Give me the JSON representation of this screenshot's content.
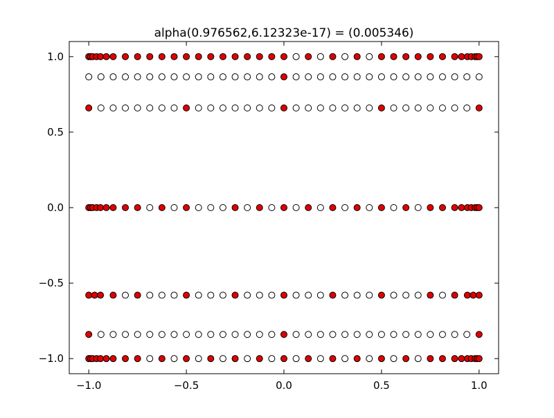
{
  "chart_data": {
    "type": "scatter",
    "title": "alpha(0.976562,6.12323e-17) =  (0.005346)",
    "xlabel": "",
    "ylabel": "",
    "xlim": [
      -1.1,
      1.1
    ],
    "ylim": [
      -1.1,
      1.1
    ],
    "xticks": [
      -1.0,
      -0.5,
      0.0,
      0.5,
      1.0
    ],
    "yticks": [
      -1.0,
      -0.5,
      0.0,
      0.5,
      1.0
    ],
    "xtick_labels": [
      "−1.0",
      "−0.5",
      "0.0",
      "0.5",
      "1.0"
    ],
    "ytick_labels": [
      "−1.0",
      "−0.5",
      "0.0",
      "0.5",
      "1.0"
    ],
    "grid": false,
    "marker_colors": {
      "filled": "#e00000",
      "open": "#ffffff",
      "edge": "#000000"
    },
    "series": [
      {
        "marker": "filled",
        "points": [
          [
            -1.0,
            1.0
          ],
          [
            -0.99,
            1.0
          ],
          [
            -0.98,
            1.0
          ],
          [
            -0.96,
            1.0
          ],
          [
            -0.94,
            1.0
          ],
          [
            -0.91,
            1.0
          ],
          [
            -0.875,
            1.0
          ],
          [
            -0.8125,
            1.0
          ],
          [
            -0.75,
            1.0
          ],
          [
            -0.6875,
            1.0
          ],
          [
            -0.625,
            1.0
          ],
          [
            -0.5625,
            1.0
          ],
          [
            -0.5,
            1.0
          ],
          [
            -0.4375,
            1.0
          ],
          [
            -0.375,
            1.0
          ],
          [
            -0.3125,
            1.0
          ],
          [
            -0.25,
            1.0
          ],
          [
            -0.1875,
            1.0
          ],
          [
            -0.125,
            1.0
          ],
          [
            -0.0625,
            1.0
          ],
          [
            0.0,
            1.0
          ],
          [
            0.125,
            1.0
          ],
          [
            0.25,
            1.0
          ],
          [
            0.375,
            1.0
          ],
          [
            0.5,
            1.0
          ],
          [
            0.5625,
            1.0
          ],
          [
            0.625,
            1.0
          ],
          [
            0.6875,
            1.0
          ],
          [
            0.75,
            1.0
          ],
          [
            0.8125,
            1.0
          ],
          [
            0.875,
            1.0
          ],
          [
            0.91,
            1.0
          ],
          [
            0.94,
            1.0
          ],
          [
            0.96,
            1.0
          ],
          [
            0.98,
            1.0
          ],
          [
            0.99,
            1.0
          ],
          [
            1.0,
            1.0
          ],
          [
            0.0,
            0.866
          ],
          [
            -1.0,
            0.66
          ],
          [
            -0.5,
            0.66
          ],
          [
            0.0,
            0.66
          ],
          [
            0.5,
            0.66
          ],
          [
            1.0,
            0.66
          ],
          [
            -1.0,
            0.0
          ],
          [
            -0.99,
            0.0
          ],
          [
            -0.98,
            0.0
          ],
          [
            -0.96,
            0.0
          ],
          [
            -0.94,
            0.0
          ],
          [
            -0.91,
            0.0
          ],
          [
            -0.875,
            0.0
          ],
          [
            -0.8125,
            0.0
          ],
          [
            -0.75,
            0.0
          ],
          [
            -0.625,
            0.0
          ],
          [
            -0.5,
            0.0
          ],
          [
            -0.25,
            0.0
          ],
          [
            -0.125,
            0.0
          ],
          [
            0.0,
            0.0
          ],
          [
            0.125,
            0.0
          ],
          [
            0.25,
            0.0
          ],
          [
            0.375,
            0.0
          ],
          [
            0.5,
            0.0
          ],
          [
            0.625,
            0.0
          ],
          [
            0.75,
            0.0
          ],
          [
            0.8125,
            0.0
          ],
          [
            0.875,
            0.0
          ],
          [
            0.91,
            0.0
          ],
          [
            0.94,
            0.0
          ],
          [
            0.96,
            0.0
          ],
          [
            0.98,
            0.0
          ],
          [
            0.99,
            0.0
          ],
          [
            1.0,
            0.0
          ],
          [
            -1.0,
            -0.58
          ],
          [
            -0.97,
            -0.58
          ],
          [
            -0.94,
            -0.58
          ],
          [
            -0.875,
            -0.58
          ],
          [
            -0.75,
            -0.58
          ],
          [
            -0.5,
            -0.58
          ],
          [
            -0.25,
            -0.58
          ],
          [
            0.0,
            -0.58
          ],
          [
            0.25,
            -0.58
          ],
          [
            0.5,
            -0.58
          ],
          [
            0.75,
            -0.58
          ],
          [
            0.875,
            -0.58
          ],
          [
            0.94,
            -0.58
          ],
          [
            0.97,
            -0.58
          ],
          [
            1.0,
            -0.58
          ],
          [
            -1.0,
            -0.84
          ],
          [
            0.0,
            -0.84
          ],
          [
            1.0,
            -0.84
          ],
          [
            -1.0,
            -1.0
          ],
          [
            -0.99,
            -1.0
          ],
          [
            -0.98,
            -1.0
          ],
          [
            -0.96,
            -1.0
          ],
          [
            -0.94,
            -1.0
          ],
          [
            -0.91,
            -1.0
          ],
          [
            -0.875,
            -1.0
          ],
          [
            -0.8125,
            -1.0
          ],
          [
            -0.75,
            -1.0
          ],
          [
            -0.625,
            -1.0
          ],
          [
            -0.5,
            -1.0
          ],
          [
            -0.375,
            -1.0
          ],
          [
            -0.25,
            -1.0
          ],
          [
            -0.125,
            -1.0
          ],
          [
            0.0,
            -1.0
          ],
          [
            0.125,
            -1.0
          ],
          [
            0.25,
            -1.0
          ],
          [
            0.375,
            -1.0
          ],
          [
            0.5,
            -1.0
          ],
          [
            0.625,
            -1.0
          ],
          [
            0.75,
            -1.0
          ],
          [
            0.8125,
            -1.0
          ],
          [
            0.875,
            -1.0
          ],
          [
            0.91,
            -1.0
          ],
          [
            0.94,
            -1.0
          ],
          [
            0.96,
            -1.0
          ],
          [
            0.98,
            -1.0
          ],
          [
            0.99,
            -1.0
          ],
          [
            1.0,
            -1.0
          ]
        ]
      },
      {
        "marker": "open",
        "points": [
          [
            0.0625,
            1.0
          ],
          [
            0.1875,
            1.0
          ],
          [
            0.3125,
            1.0
          ],
          [
            0.4375,
            1.0
          ],
          [
            -1.0,
            0.866
          ],
          [
            -0.9375,
            0.866
          ],
          [
            -0.875,
            0.866
          ],
          [
            -0.8125,
            0.866
          ],
          [
            -0.75,
            0.866
          ],
          [
            -0.6875,
            0.866
          ],
          [
            -0.625,
            0.866
          ],
          [
            -0.5625,
            0.866
          ],
          [
            -0.5,
            0.866
          ],
          [
            -0.4375,
            0.866
          ],
          [
            -0.375,
            0.866
          ],
          [
            -0.3125,
            0.866
          ],
          [
            -0.25,
            0.866
          ],
          [
            -0.1875,
            0.866
          ],
          [
            -0.125,
            0.866
          ],
          [
            -0.0625,
            0.866
          ],
          [
            0.0625,
            0.866
          ],
          [
            0.125,
            0.866
          ],
          [
            0.1875,
            0.866
          ],
          [
            0.25,
            0.866
          ],
          [
            0.3125,
            0.866
          ],
          [
            0.375,
            0.866
          ],
          [
            0.4375,
            0.866
          ],
          [
            0.5,
            0.866
          ],
          [
            0.5625,
            0.866
          ],
          [
            0.625,
            0.866
          ],
          [
            0.6875,
            0.866
          ],
          [
            0.75,
            0.866
          ],
          [
            0.8125,
            0.866
          ],
          [
            0.875,
            0.866
          ],
          [
            0.9375,
            0.866
          ],
          [
            1.0,
            0.866
          ],
          [
            -0.9375,
            0.66
          ],
          [
            -0.875,
            0.66
          ],
          [
            -0.8125,
            0.66
          ],
          [
            -0.75,
            0.66
          ],
          [
            -0.6875,
            0.66
          ],
          [
            -0.625,
            0.66
          ],
          [
            -0.5625,
            0.66
          ],
          [
            -0.4375,
            0.66
          ],
          [
            -0.375,
            0.66
          ],
          [
            -0.3125,
            0.66
          ],
          [
            -0.25,
            0.66
          ],
          [
            -0.1875,
            0.66
          ],
          [
            -0.125,
            0.66
          ],
          [
            -0.0625,
            0.66
          ],
          [
            0.0625,
            0.66
          ],
          [
            0.125,
            0.66
          ],
          [
            0.1875,
            0.66
          ],
          [
            0.25,
            0.66
          ],
          [
            0.3125,
            0.66
          ],
          [
            0.375,
            0.66
          ],
          [
            0.4375,
            0.66
          ],
          [
            0.5625,
            0.66
          ],
          [
            0.625,
            0.66
          ],
          [
            0.6875,
            0.66
          ],
          [
            0.75,
            0.66
          ],
          [
            0.8125,
            0.66
          ],
          [
            0.875,
            0.66
          ],
          [
            0.9375,
            0.66
          ],
          [
            -0.6875,
            0.0
          ],
          [
            -0.5625,
            0.0
          ],
          [
            -0.4375,
            0.0
          ],
          [
            -0.375,
            0.0
          ],
          [
            -0.3125,
            0.0
          ],
          [
            -0.1875,
            0.0
          ],
          [
            -0.0625,
            0.0
          ],
          [
            0.0625,
            0.0
          ],
          [
            0.1875,
            0.0
          ],
          [
            0.3125,
            0.0
          ],
          [
            0.4375,
            0.0
          ],
          [
            0.5625,
            0.0
          ],
          [
            0.6875,
            0.0
          ],
          [
            -0.8125,
            -0.58
          ],
          [
            -0.6875,
            -0.58
          ],
          [
            -0.625,
            -0.58
          ],
          [
            -0.5625,
            -0.58
          ],
          [
            -0.4375,
            -0.58
          ],
          [
            -0.375,
            -0.58
          ],
          [
            -0.3125,
            -0.58
          ],
          [
            -0.1875,
            -0.58
          ],
          [
            -0.125,
            -0.58
          ],
          [
            -0.0625,
            -0.58
          ],
          [
            0.0625,
            -0.58
          ],
          [
            0.125,
            -0.58
          ],
          [
            0.1875,
            -0.58
          ],
          [
            0.3125,
            -0.58
          ],
          [
            0.375,
            -0.58
          ],
          [
            0.4375,
            -0.58
          ],
          [
            0.5625,
            -0.58
          ],
          [
            0.625,
            -0.58
          ],
          [
            0.6875,
            -0.58
          ],
          [
            0.8125,
            -0.58
          ],
          [
            -0.9375,
            -0.84
          ],
          [
            -0.875,
            -0.84
          ],
          [
            -0.8125,
            -0.84
          ],
          [
            -0.75,
            -0.84
          ],
          [
            -0.6875,
            -0.84
          ],
          [
            -0.625,
            -0.84
          ],
          [
            -0.5625,
            -0.84
          ],
          [
            -0.5,
            -0.84
          ],
          [
            -0.4375,
            -0.84
          ],
          [
            -0.375,
            -0.84
          ],
          [
            -0.3125,
            -0.84
          ],
          [
            -0.25,
            -0.84
          ],
          [
            -0.1875,
            -0.84
          ],
          [
            -0.125,
            -0.84
          ],
          [
            -0.0625,
            -0.84
          ],
          [
            0.0625,
            -0.84
          ],
          [
            0.125,
            -0.84
          ],
          [
            0.1875,
            -0.84
          ],
          [
            0.25,
            -0.84
          ],
          [
            0.3125,
            -0.84
          ],
          [
            0.375,
            -0.84
          ],
          [
            0.4375,
            -0.84
          ],
          [
            0.5,
            -0.84
          ],
          [
            0.5625,
            -0.84
          ],
          [
            0.625,
            -0.84
          ],
          [
            0.6875,
            -0.84
          ],
          [
            0.75,
            -0.84
          ],
          [
            0.8125,
            -0.84
          ],
          [
            0.875,
            -0.84
          ],
          [
            0.9375,
            -0.84
          ],
          [
            -0.6875,
            -1.0
          ],
          [
            -0.5625,
            -1.0
          ],
          [
            -0.4375,
            -1.0
          ],
          [
            -0.3125,
            -1.0
          ],
          [
            -0.1875,
            -1.0
          ],
          [
            -0.0625,
            -1.0
          ],
          [
            0.0625,
            -1.0
          ],
          [
            0.1875,
            -1.0
          ],
          [
            0.3125,
            -1.0
          ],
          [
            0.4375,
            -1.0
          ],
          [
            0.5625,
            -1.0
          ],
          [
            0.6875,
            -1.0
          ]
        ]
      }
    ]
  }
}
